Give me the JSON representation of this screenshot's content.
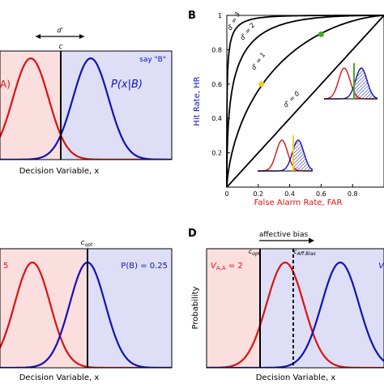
{
  "panelA": {
    "dprime_label": "d'",
    "criterion_label": "c",
    "say_b_label": "say \"B\"",
    "left_label_fragment": "A)",
    "pb_label": "P(x|B)",
    "xlabel": "Decision Variable, x",
    "colors": {
      "red_bg": "#fbdede",
      "blue_bg": "#dedff7",
      "red": "#dd1111",
      "blue": "#1111bb"
    }
  },
  "panelB": {
    "letter": "B",
    "ylabel": "Hit Rate, HR",
    "xlabel": "False Alarm Rate, FAR",
    "yticks": [
      "0.2",
      "0.4",
      "0.6",
      "0.8",
      "1"
    ],
    "xticks": [
      "0",
      "0.2",
      "0.4",
      "0.6",
      "0.8"
    ],
    "curve_labels": [
      "d' = 3",
      "d' = 2",
      "d' = 1",
      "d' = 0"
    ],
    "chart_data": {
      "type": "line",
      "xlabel": "False Alarm Rate, FAR",
      "ylabel": "Hit Rate, HR",
      "xlim": [
        0,
        1
      ],
      "ylim": [
        0,
        1
      ],
      "series": [
        {
          "name": "d' = 3",
          "dprime": 3
        },
        {
          "name": "d' = 2",
          "dprime": 2
        },
        {
          "name": "d' = 1",
          "dprime": 1
        },
        {
          "name": "d' = 0",
          "dprime": 0
        }
      ],
      "points": [
        {
          "x": 0.6,
          "y": 0.89,
          "color": "#44aa22"
        },
        {
          "x": 0.22,
          "y": 0.6,
          "color": "#f0d020"
        }
      ]
    }
  },
  "panelC": {
    "left_value_fragment": "5",
    "copt_label": "c_opt",
    "pb_label": "P(B) = 0.25",
    "xlabel": "Decision Variable, x"
  },
  "panelD": {
    "letter": "D",
    "bias_label": "affective bias",
    "copt_label": "c_opt",
    "caff_label": "c_Aff.Bias",
    "vaa_label": "V_A,A = 2",
    "v_fragment": "V",
    "ylabel": "Probability",
    "xlabel": "Decision Variable, x"
  }
}
